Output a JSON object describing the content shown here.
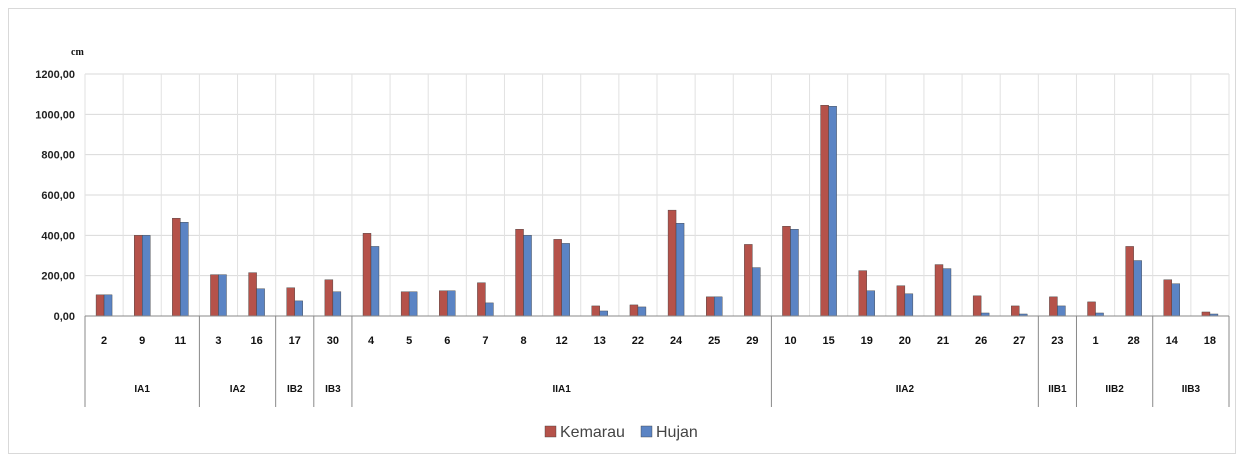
{
  "chart_data": {
    "type": "bar",
    "ylabel": "cm",
    "ylim": [
      0,
      1200
    ],
    "yticks": [
      "0,00",
      "200,00",
      "400,00",
      "600,00",
      "800,00",
      "1000,00",
      "1200,00"
    ],
    "grid": true,
    "legend_position": "bottom-center",
    "groups": [
      {
        "label": "IA1",
        "categories": [
          "2",
          "9",
          "11"
        ]
      },
      {
        "label": "IA2",
        "categories": [
          "3",
          "16"
        ]
      },
      {
        "label": "IB2",
        "categories": [
          "17"
        ]
      },
      {
        "label": "IB3",
        "categories": [
          "30"
        ]
      },
      {
        "label": "IIA1",
        "categories": [
          "4",
          "5",
          "6",
          "7",
          "8",
          "12",
          "13",
          "22",
          "24",
          "25",
          "29"
        ]
      },
      {
        "label": "IIA2",
        "categories": [
          "10",
          "15",
          "19",
          "20",
          "21",
          "26",
          "27"
        ]
      },
      {
        "label": "IIB1",
        "categories": [
          "23"
        ]
      },
      {
        "label": "IIB2",
        "categories": [
          "1",
          "28"
        ]
      },
      {
        "label": "IIB3",
        "categories": [
          "14",
          "18"
        ]
      }
    ],
    "categories": [
      "2",
      "9",
      "11",
      "3",
      "16",
      "17",
      "30",
      "4",
      "5",
      "6",
      "7",
      "8",
      "12",
      "13",
      "22",
      "24",
      "25",
      "29",
      "10",
      "15",
      "19",
      "20",
      "21",
      "26",
      "27",
      "23",
      "1",
      "28",
      "14",
      "18"
    ],
    "series": [
      {
        "name": "Kemarau",
        "color": "#b5524a",
        "values": [
          105,
          400,
          485,
          205,
          215,
          140,
          180,
          410,
          120,
          125,
          165,
          430,
          380,
          50,
          55,
          525,
          95,
          355,
          445,
          1045,
          225,
          150,
          255,
          100,
          50,
          95,
          70,
          345,
          180,
          20
        ]
      },
      {
        "name": "Hujan",
        "color": "#5b84c4",
        "values": [
          105,
          400,
          465,
          205,
          135,
          75,
          120,
          345,
          120,
          125,
          65,
          400,
          360,
          25,
          45,
          460,
          95,
          240,
          430,
          1040,
          125,
          110,
          235,
          15,
          10,
          50,
          15,
          275,
          160,
          10
        ]
      }
    ]
  }
}
